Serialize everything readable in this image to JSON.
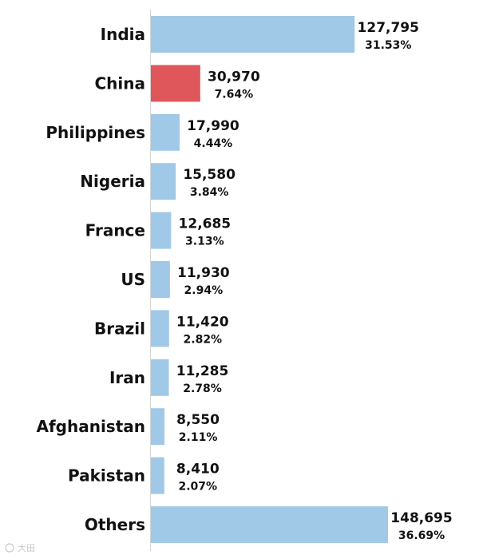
{
  "chart_data": {
    "type": "bar",
    "orientation": "horizontal",
    "categories": [
      "India",
      "China",
      "Philippines",
      "Nigeria",
      "France",
      "US",
      "Brazil",
      "Iran",
      "Afghanistan",
      "Pakistan",
      "Others"
    ],
    "values": [
      127795,
      30970,
      17990,
      15580,
      12685,
      11930,
      11420,
      11285,
      8550,
      8410,
      148695
    ],
    "value_labels": [
      "127,795",
      "30,970",
      "17,990",
      "15,580",
      "12,685",
      "11,930",
      "11,420",
      "11,285",
      "8,550",
      "8,410",
      "148,695"
    ],
    "percent_labels": [
      "31.53%",
      "7.64%",
      "4.44%",
      "3.84%",
      "3.13%",
      "2.94%",
      "2.82%",
      "2.78%",
      "2.11%",
      "2.07%",
      "36.69%"
    ],
    "highlight_category": "China",
    "colors": {
      "default": "#a0c9e7",
      "highlight": "#e0575b",
      "axis": "#d6d6d6",
      "text": "#111111"
    },
    "title": "",
    "xlabel": "",
    "ylabel": "",
    "xlim": [
      0,
      148695
    ],
    "grid": false,
    "legend": "none"
  },
  "watermark": "大田"
}
